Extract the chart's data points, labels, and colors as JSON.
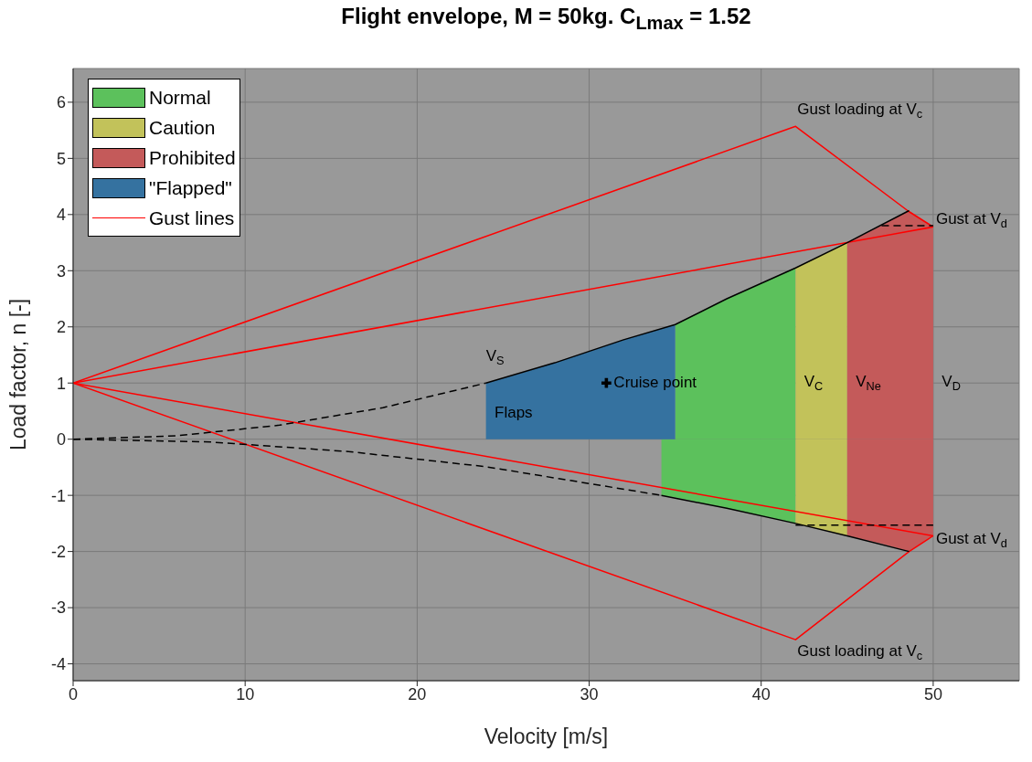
{
  "chart_data": {
    "type": "area",
    "title": "Flight envelope, M = 50kg. C$_{L}$$_{max}$ = 1.52",
    "xlabel": "Velocity [m/s]",
    "ylabel": "Load factor, n [-]",
    "xlim": [
      0,
      55
    ],
    "xticks": [
      0,
      10,
      20,
      30,
      40,
      50
    ],
    "ylim": [
      -4.3,
      6.6
    ],
    "yticks": [
      -4,
      -3,
      -2,
      -1,
      0,
      1,
      2,
      3,
      4,
      5,
      6
    ],
    "grid": true,
    "legend": "top left",
    "series": [
      {
        "name": "Normal",
        "color": "#5cc15c",
        "x": [
          35,
          36,
          38,
          40,
          42
        ],
        "values": [
          2.04,
          2.2,
          2.5,
          2.77,
          3.05
        ]
      },
      {
        "color": "#5cc15c",
        "x": [
          34.2,
          35,
          36,
          38,
          40,
          42
        ],
        "values": [
          -1.0,
          -1.04,
          -1.1,
          -1.23,
          -1.36,
          -1.5
        ]
      },
      {
        "name": "Caution",
        "color": "#c2c25a",
        "x": [
          42,
          43,
          44,
          45
        ],
        "values": [
          3.05,
          3.2,
          3.35,
          3.5
        ]
      },
      {
        "color": "#c2c25a",
        "x": [
          42,
          43,
          44,
          45
        ],
        "values": [
          -1.5,
          -1.57,
          -1.64,
          -1.72
        ]
      },
      {
        "name": "Prohibited",
        "color": "#c45a5a",
        "x": [
          45,
          47,
          48.6,
          50
        ],
        "values": [
          3.5,
          3.8,
          4.07,
          3.78
        ]
      },
      {
        "color": "#c45a5a",
        "x": [
          45,
          47,
          48.6,
          50
        ],
        "values": [
          -1.72,
          -1.86,
          -2.0,
          -1.72
        ]
      },
      {
        "name": "\"Flapped\"",
        "color": "#3572a0",
        "x": [
          24,
          26,
          28,
          30,
          32,
          35
        ],
        "values": [
          1.0,
          1.17,
          1.36,
          1.56,
          1.77,
          2.04
        ]
      },
      {
        "type": "line",
        "name": "Gust lines",
        "color": "#ff0000",
        "line_style": "solid",
        "x": [
          0,
          42,
          48.6,
          50
        ],
        "values": [
          1,
          5.57,
          4.05,
          3.78
        ]
      },
      {
        "type": "line",
        "color": "#ff0000",
        "line_style": "solid",
        "x": [
          0,
          50
        ],
        "values": [
          1,
          3.78
        ]
      },
      {
        "type": "line",
        "color": "#ff0000",
        "line_style": "solid",
        "x": [
          0,
          42,
          48.6,
          50
        ],
        "values": [
          1,
          -3.57,
          -2.0,
          -1.72
        ]
      },
      {
        "type": "line",
        "color": "#ff0000",
        "line_style": "solid",
        "x": [
          0,
          50
        ],
        "values": [
          1,
          -1.72
        ]
      },
      {
        "type": "line",
        "color": "#000000",
        "line_style": "dashed",
        "x": [
          0,
          6,
          12,
          18,
          24
        ],
        "values": [
          0,
          0.06,
          0.25,
          0.56,
          1.0
        ]
      },
      {
        "type": "line",
        "color": "#000000",
        "line_style": "solid",
        "x": [
          24,
          28,
          32,
          35,
          38,
          42,
          45,
          48.6
        ],
        "values": [
          1.0,
          1.36,
          1.77,
          2.04,
          2.5,
          3.05,
          3.5,
          4.07
        ]
      },
      {
        "type": "line",
        "color": "#000000",
        "line_style": "dashed",
        "x": [
          0,
          8,
          16,
          24,
          34.2
        ],
        "values": [
          0,
          -0.05,
          -0.22,
          -0.49,
          -1.0
        ]
      },
      {
        "type": "line",
        "color": "#000000",
        "line_style": "solid",
        "x": [
          34.2,
          38,
          42,
          45,
          48.6
        ],
        "values": [
          -1.0,
          -1.23,
          -1.5,
          -1.72,
          -2.0
        ]
      },
      {
        "type": "line",
        "color": "#000000",
        "line_style": "dashed",
        "x": [
          47,
          48.5,
          50
        ],
        "values": [
          3.8,
          3.8,
          3.8
        ]
      },
      {
        "type": "line",
        "color": "#000000",
        "line_style": "dashed",
        "x": [
          42,
          46,
          50
        ],
        "values": [
          -1.53,
          -1.53,
          -1.53
        ]
      },
      {
        "type": "scatter",
        "name": "Cruise point",
        "color": "#000000",
        "marker": "cross",
        "x": [
          31
        ],
        "values": [
          1
        ]
      }
    ],
    "annotations": [
      {
        "text": "V$_{S}$",
        "x": 24,
        "y": 1.0
      },
      "Flaps",
      "V$_{C}$",
      "V$_{Ne}$",
      "V$_{D}$",
      {
        "text": "Gust loading at V$_{c}$",
        "x": 42,
        "y": 5.57
      },
      {
        "text": "Gust loading at V$_{c}$",
        "x": 42,
        "y": -3.57
      },
      {
        "text": "Gust at V$_{d}$",
        "x": 50,
        "y": 3.78
      },
      {
        "text": "Gust at V$_{d}$",
        "x": 50,
        "y": -1.72
      }
    ]
  }
}
